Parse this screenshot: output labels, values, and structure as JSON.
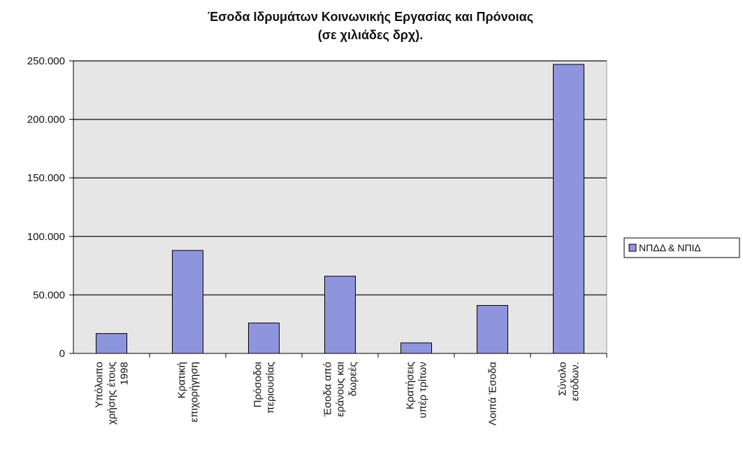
{
  "chart_data": {
    "type": "bar",
    "title": "Έσοδα Ιδρυμάτων Κοινωνικής Εργασίας και Πρόνοιας",
    "subtitle": "(σε χιλιάδες δρχ).",
    "categories": [
      "Υπόλοιπο χρήσης έτους 1998",
      "Κρατική επιχορήγηση",
      "Πρόσοδοι περιουσίας",
      "Έσοδα από εράνους και δωρεές",
      "Κρατήσεις υπέρ τρίτων",
      "Λοιπά Έσοδα",
      "Σύνολο εσόδων."
    ],
    "series": [
      {
        "name": "ΝΠΔΔ & ΝΠΙΔ",
        "color": "#8f95dc",
        "values": [
          17000,
          88000,
          26000,
          66000,
          9000,
          41000,
          247000
        ]
      }
    ],
    "ylim": [
      0,
      250000
    ],
    "yticks": [
      0,
      {
        "value": 50000,
        "label": "50.000"
      },
      {
        "value": 100000,
        "label": "100.000"
      },
      {
        "value": 150000,
        "label": "150.000"
      },
      {
        "value": 200000,
        "label": "200.000"
      },
      {
        "value": 250000,
        "label": "250.000"
      }
    ],
    "grid": true,
    "legend": "right"
  }
}
